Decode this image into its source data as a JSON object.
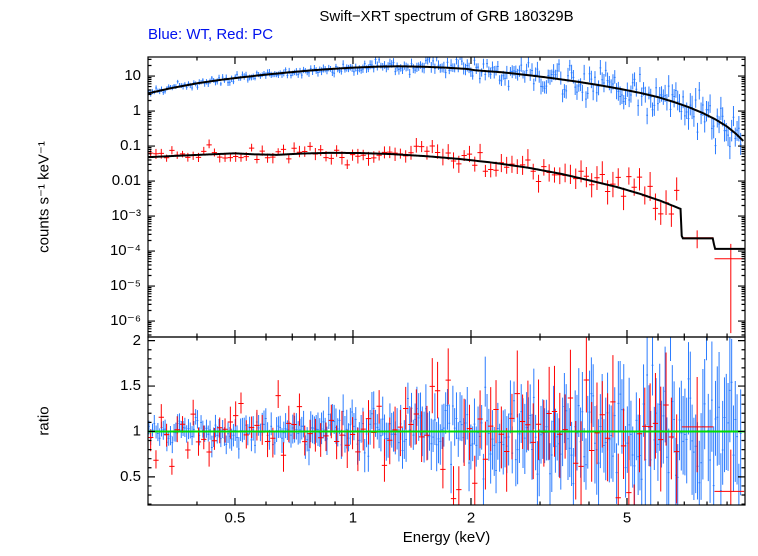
{
  "title": "Swift−XRT spectrum of GRB 180329B",
  "subtitle": "Blue: WT, Red: PC",
  "colors": {
    "wt": "#2b7cff",
    "pc": "#ff0000",
    "model": "#000000",
    "ratio_reference": "#00dd00",
    "frame": "#000000",
    "text": "#000000",
    "subtitle_text": "#0011ee",
    "background": "#ffffff"
  },
  "chart_data": {
    "type": "scatter",
    "title": "Swift−XRT spectrum of GRB 180329B",
    "annotation": "Blue: WT, Red: PC",
    "legend": {
      "blue": "WT",
      "red": "PC"
    },
    "xlabel": "Energy (keV)",
    "x_scale": "log",
    "x_range": [
      0.3,
      10.0
    ],
    "x_major_ticks": [
      {
        "v": 0.5,
        "label": "0.5"
      },
      {
        "v": 1,
        "label": "1"
      },
      {
        "v": 2,
        "label": "2"
      },
      {
        "v": 5,
        "label": "5"
      }
    ],
    "x_minor_ticks": [
      0.4,
      0.6,
      0.7,
      0.8,
      0.9,
      3,
      4,
      6,
      7,
      8,
      9
    ],
    "panels": [
      {
        "name": "spectrum",
        "ylabel": "counts s⁻¹ keV⁻¹",
        "y_scale": "log",
        "y_range": [
          3.5e-07,
          35
        ],
        "y_ticks": [
          {
            "v": 10,
            "label": "10"
          },
          {
            "v": 1,
            "label": "1"
          },
          {
            "v": 0.1,
            "label": "0.1"
          },
          {
            "v": 0.01,
            "label": "0.01"
          },
          {
            "v": 0.001,
            "label": "10⁻³"
          },
          {
            "v": 0.0001,
            "label": "10⁻⁴"
          },
          {
            "v": 1e-05,
            "label": "10⁻⁵"
          },
          {
            "v": 1e-06,
            "label": "10⁻⁶"
          }
        ],
        "series": [
          {
            "name": "WT spectrum data",
            "color": "wt"
          },
          {
            "name": "PC spectrum data",
            "color": "pc"
          },
          {
            "name": "WT folded model",
            "color": "model"
          },
          {
            "name": "PC folded model",
            "color": "model"
          }
        ]
      },
      {
        "name": "ratio",
        "ylabel": "ratio",
        "y_scale": "linear",
        "y_range": [
          0.19,
          2.04
        ],
        "y_major_ticks": [
          {
            "v": 0.5,
            "label": "0.5"
          },
          {
            "v": 1,
            "label": "1"
          },
          {
            "v": 1.5,
            "label": "1.5"
          },
          {
            "v": 2,
            "label": "2"
          }
        ],
        "reference_line_y": 1
      }
    ],
    "wt_model_curve": [
      [
        0.3,
        3.2
      ],
      [
        0.34,
        4.4
      ],
      [
        0.4,
        6.2
      ],
      [
        0.46,
        7.8
      ],
      [
        0.52,
        9.2
      ],
      [
        0.6,
        11.0
      ],
      [
        0.7,
        13.0
      ],
      [
        0.8,
        14.8
      ],
      [
        0.9,
        16.2
      ],
      [
        1.0,
        17.4
      ],
      [
        1.15,
        18.5
      ],
      [
        1.3,
        19.0
      ],
      [
        1.5,
        18.5
      ],
      [
        1.7,
        17.5
      ],
      [
        1.95,
        16.0
      ],
      [
        2.05,
        14.6
      ],
      [
        2.4,
        12.8
      ],
      [
        2.8,
        10.6
      ],
      [
        3.2,
        8.8
      ],
      [
        3.7,
        7.0
      ],
      [
        4.2,
        5.6
      ],
      [
        4.8,
        4.3
      ],
      [
        5.4,
        3.3
      ],
      [
        6.0,
        2.5
      ],
      [
        6.6,
        1.8
      ],
      [
        7.2,
        1.28
      ],
      [
        7.8,
        0.88
      ],
      [
        8.4,
        0.58
      ],
      [
        9.0,
        0.36
      ],
      [
        9.5,
        0.22
      ],
      [
        9.9,
        0.14
      ]
    ],
    "pc_model_curve": [
      [
        0.3,
        0.048
      ],
      [
        0.36,
        0.053
      ],
      [
        0.42,
        0.057
      ],
      [
        0.5,
        0.062
      ],
      [
        0.56,
        0.058
      ],
      [
        0.64,
        0.056
      ],
      [
        0.74,
        0.061
      ],
      [
        0.88,
        0.064
      ],
      [
        1.05,
        0.063
      ],
      [
        1.25,
        0.059
      ],
      [
        1.55,
        0.051
      ],
      [
        1.9,
        0.042
      ],
      [
        2.3,
        0.033
      ],
      [
        2.8,
        0.024
      ],
      [
        3.4,
        0.016
      ],
      [
        4.0,
        0.0105
      ],
      [
        4.7,
        0.0068
      ],
      [
        5.4,
        0.0043
      ],
      [
        6.1,
        0.0027
      ],
      [
        6.85,
        0.0016
      ],
      [
        6.9,
        0.00023
      ],
      [
        8.3,
        0.00023
      ],
      [
        8.36,
        0.000115
      ],
      [
        10.0,
        0.000115
      ]
    ],
    "wt_data_gen": {
      "seed": 20180329,
      "n": 330,
      "x_min": 0.3,
      "x_max": 9.8,
      "scatter_lo": 0.05,
      "scatter_hi": 0.32,
      "err_lo": 0.07,
      "err_hi": 0.3,
      "ramp": 1.8
    },
    "pc_data_gen": {
      "seed": 77,
      "n": 100,
      "x_min": 0.3,
      "x_max": 6.8,
      "scatter_lo": 0.09,
      "scatter_hi": 0.38,
      "err_lo": 0.12,
      "err_hi": 0.4,
      "ramp": 1.8
    },
    "pc_extra_points": [
      {
        "x": 7.55,
        "xlo": 6.9,
        "xhi": 8.3,
        "y": 0.00024,
        "ylo": 0.00012,
        "yhi": 0.00039
      },
      {
        "x": 9.2,
        "xlo": 8.36,
        "xhi": 9.95,
        "y": 6e-05,
        "ylo": 4.5e-07,
        "yhi": 0.00016
      }
    ],
    "wt_ratio_gen": {
      "seed": 555,
      "n": 330,
      "x_min": 0.3,
      "x_max": 9.8,
      "sig_lo": 0.06,
      "sig_hi": 0.4,
      "err_lo": 0.09,
      "err_hi": 0.55,
      "ramp": 1.6
    },
    "pc_ratio_gen": {
      "seed": 888,
      "n": 100,
      "x_min": 0.3,
      "x_max": 6.8,
      "sig_lo": 0.15,
      "sig_hi": 0.5,
      "err_lo": 0.12,
      "err_hi": 0.65,
      "ramp": 1.6
    },
    "pc_ratio_extra_points": [
      {
        "x": 7.55,
        "xlo": 6.9,
        "xhi": 8.3,
        "y": 1.05,
        "ylo": 0.55,
        "yhi": 1.6
      },
      {
        "x": 9.2,
        "xlo": 8.36,
        "xhi": 9.95,
        "y": 0.34,
        "ylo": 0.1,
        "yhi": 0.8
      }
    ]
  }
}
